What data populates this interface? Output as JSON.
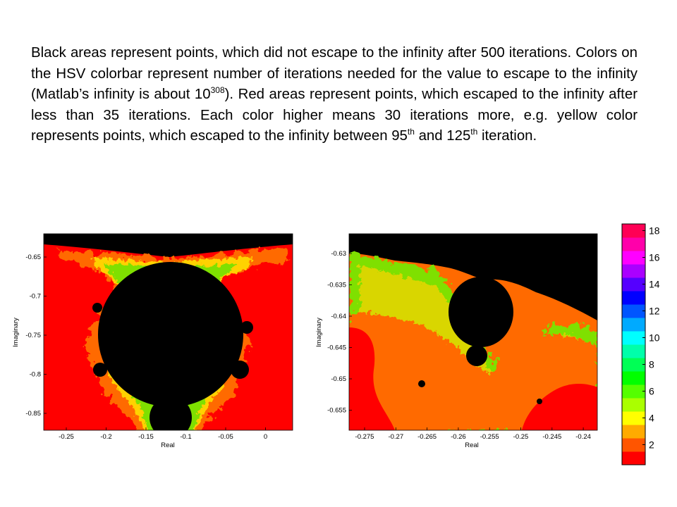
{
  "caption": {
    "sentence1": "Black areas represent points, which did not escape to the infinity after 500 iterations.",
    "sentence2": "Colors on the HSV colorbar represent number of iterations needed for the value to escape to the infinity (Matlab’s infinity is about 10",
    "exp_308": "308",
    "sentence2_end": "). Red areas represent points, which escaped to the infinity after less than 35 iterations.",
    "sentence3": "Each color higher means 30 iterations more, e.g. yellow color represents points, which escaped to the infinity between 95",
    "sup_th1": "th",
    "and_125": " and 125",
    "sup_th2": "th",
    "iteration_end": " iteration."
  },
  "plot_left": {
    "xlabel": "Real",
    "ylabel": "Imaginary",
    "xticks": [
      "-0.25",
      "-0.2",
      "-0.15",
      "-0.1",
      "-0.05",
      "0"
    ],
    "yticks": [
      "-0.65",
      "-0.7",
      "-0.75",
      "-0.8",
      "-0.85"
    ]
  },
  "plot_right": {
    "xlabel": "Real",
    "ylabel": "Imaginary",
    "xticks": [
      "-0.275",
      "-0.27",
      "-0.265",
      "-0.26",
      "-0.255",
      "-0.25",
      "-0.245",
      "-0.24"
    ],
    "yticks": [
      "-0.63",
      "-0.635",
      "-0.64",
      "-0.645",
      "-0.65",
      "-0.655"
    ]
  },
  "colorbar": {
    "ticks": [
      "18",
      "16",
      "14",
      "12",
      "10",
      "8",
      "6",
      "4",
      "2"
    ],
    "range": [
      1,
      18
    ],
    "colormap": "hsv"
  },
  "colors": {
    "set_interior": "#000000",
    "outer_red": "#ff0000",
    "band_orange": "#ff6a00",
    "band_yellow": "#ffd200",
    "band_green": "#7fe000"
  }
}
